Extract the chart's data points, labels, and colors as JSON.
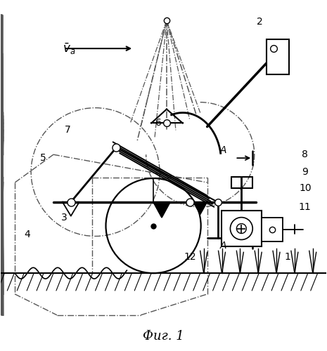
{
  "title": "Фиг. 1",
  "bg": "#ffffff",
  "lc": "#000000",
  "dc": "#555555",
  "figsize": [
    4.65,
    5.0
  ],
  "dpi": 100
}
